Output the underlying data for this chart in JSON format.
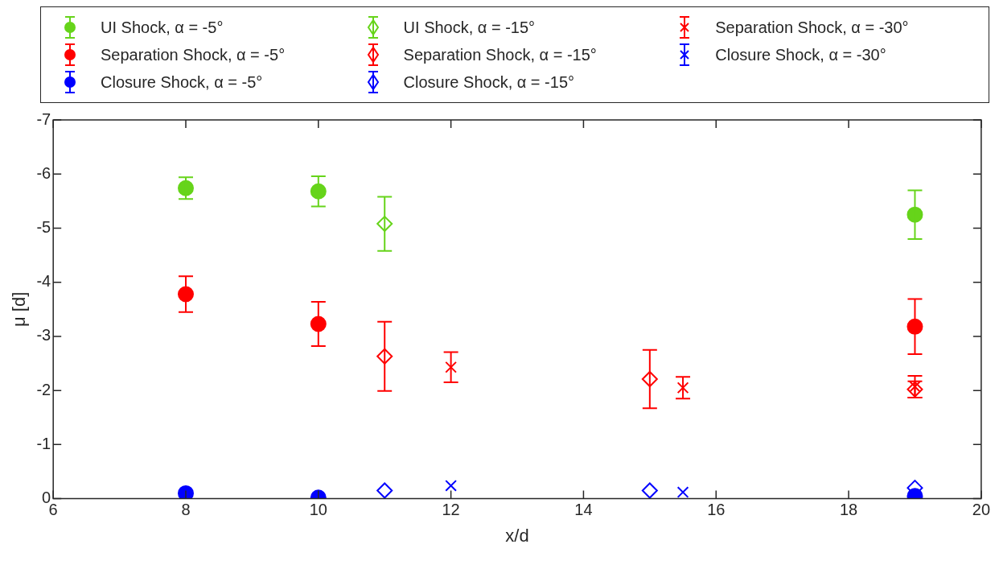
{
  "chart_data": {
    "type": "scatter",
    "xlabel": "x/d",
    "ylabel": "μ [d]",
    "xlim": [
      6,
      20
    ],
    "xticks": [
      6,
      8,
      10,
      12,
      14,
      16,
      18,
      20
    ],
    "ylim": [
      0,
      -7
    ],
    "yticks": [
      0,
      -1,
      -2,
      -3,
      -4,
      -5,
      -6,
      -7
    ],
    "grid": false,
    "legend": "top",
    "series": [
      {
        "name": "UI Shock, α = -5°",
        "color": "#66d41a",
        "marker": "circle",
        "x": [
          8,
          10,
          19
        ],
        "values": [
          -5.74,
          -5.68,
          -5.25
        ],
        "errors": [
          0.2,
          0.28,
          0.45
        ]
      },
      {
        "name": "Separation Shock, α = -5°",
        "color": "#ff0000",
        "marker": "circle",
        "x": [
          8,
          10,
          19
        ],
        "values": [
          -3.78,
          -3.23,
          -3.18
        ],
        "errors": [
          0.33,
          0.41,
          0.51
        ]
      },
      {
        "name": "Closure Shock, α = -5°",
        "color": "#0000ff",
        "marker": "circle",
        "x": [
          8,
          10,
          19
        ],
        "values": [
          -0.1,
          -0.02,
          -0.05
        ],
        "errors": [
          null,
          null,
          null
        ]
      },
      {
        "name": "UI Shock, α = -15°",
        "color": "#66d41a",
        "marker": "diamond",
        "x": [
          11
        ],
        "values": [
          -5.08
        ],
        "errors": [
          0.5
        ]
      },
      {
        "name": "Separation Shock, α = -15°",
        "color": "#ff0000",
        "marker": "diamond",
        "x": [
          11,
          15,
          19
        ],
        "values": [
          -2.63,
          -2.21,
          -2.02
        ],
        "errors": [
          0.64,
          0.54,
          0.15
        ]
      },
      {
        "name": "Closure Shock, α = -15°",
        "color": "#0000ff",
        "marker": "diamond",
        "x": [
          11,
          15,
          19
        ],
        "values": [
          -0.15,
          -0.15,
          -0.2
        ],
        "errors": [
          null,
          null,
          null
        ]
      },
      {
        "name": "Separation Shock, α = -30°",
        "color": "#ff0000",
        "marker": "cross",
        "x": [
          12,
          15.5,
          19
        ],
        "values": [
          -2.43,
          -2.05,
          -2.07
        ],
        "errors": [
          0.28,
          0.2,
          0.2
        ]
      },
      {
        "name": "Closure Shock, α = -30°",
        "color": "#0000ff",
        "marker": "cross",
        "x": [
          12,
          15.5
        ],
        "values": [
          -0.24,
          -0.12
        ],
        "errors": [
          null,
          null
        ]
      }
    ]
  }
}
